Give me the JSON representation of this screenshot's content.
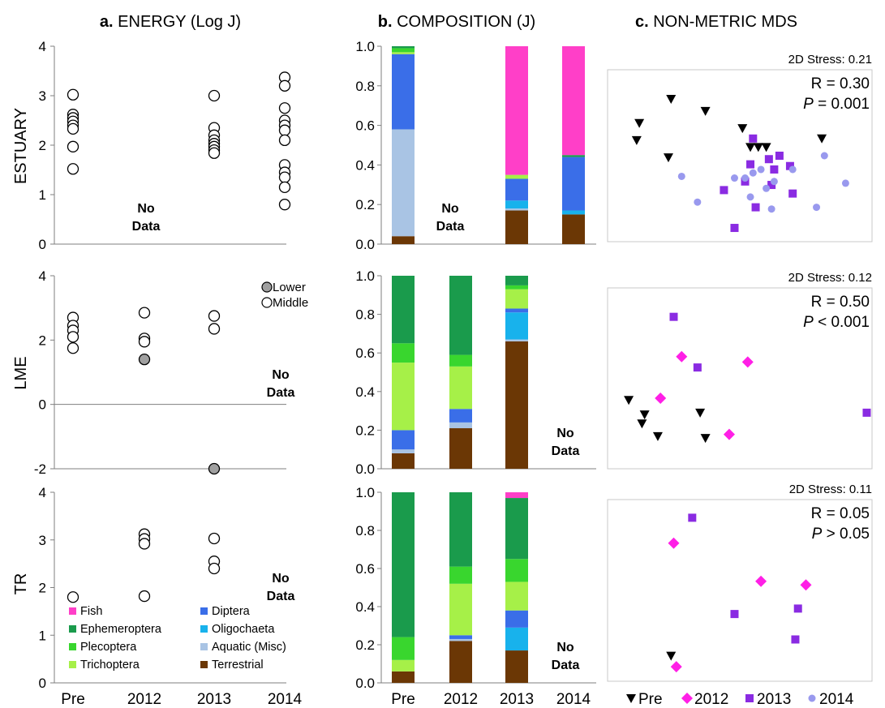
{
  "panel_titles": {
    "a": {
      "letter": "a.",
      "text": " ENERGY (Log J)"
    },
    "b": {
      "letter": "b.",
      "text": " COMPOSITION (J)"
    },
    "c": {
      "letter": "c.",
      "text": " NON-METRIC MDS"
    }
  },
  "row_labels": [
    "ESTUARY",
    "LME",
    "TR"
  ],
  "categories": [
    "Pre",
    "2012",
    "2013",
    "2014"
  ],
  "no_data_label": [
    "No",
    "Data"
  ],
  "colors": {
    "Fish": "#ff3fc8",
    "Ephemeroptera": "#1a9b4c",
    "Plecoptera": "#39d62e",
    "Trichoptera": "#a6f048",
    "Diptera": "#3a6ee8",
    "Oligochaeta": "#18b2ec",
    "Aquatic (Misc)": "#a9c4e4",
    "Terrestrial": "#6b3705",
    "mds_Pre": "#000000",
    "mds_2012": "#ff1fe6",
    "mds_2013": "#8a2be2",
    "mds_2014": "#9999ee",
    "lower_fill": "#a0a0a0"
  },
  "chart_data": [
    {
      "type": "scatter",
      "panel": "a",
      "row": "ESTUARY",
      "ylim": [
        0,
        4
      ],
      "yticks": [
        "0",
        "1",
        "2",
        "3",
        "4"
      ],
      "x": [
        "Pre",
        "2012",
        "2013",
        "2014"
      ],
      "series": [
        {
          "name": "",
          "style": "open",
          "points": [
            [
              "Pre",
              3.02
            ],
            [
              "Pre",
              2.62
            ],
            [
              "Pre",
              2.55
            ],
            [
              "Pre",
              2.48
            ],
            [
              "Pre",
              2.4
            ],
            [
              "Pre",
              2.33
            ],
            [
              "Pre",
              1.97
            ],
            [
              "Pre",
              1.52
            ],
            [
              "2013",
              3.0
            ],
            [
              "2013",
              2.35
            ],
            [
              "2013",
              2.2
            ],
            [
              "2013",
              2.1
            ],
            [
              "2013",
              2.03
            ],
            [
              "2013",
              1.97
            ],
            [
              "2013",
              1.9
            ],
            [
              "2013",
              1.84
            ],
            [
              "2014",
              3.37
            ],
            [
              "2014",
              3.2
            ],
            [
              "2014",
              2.75
            ],
            [
              "2014",
              2.5
            ],
            [
              "2014",
              2.4
            ],
            [
              "2014",
              2.3
            ],
            [
              "2014",
              2.1
            ],
            [
              "2014",
              1.6
            ],
            [
              "2014",
              1.45
            ],
            [
              "2014",
              1.35
            ],
            [
              "2014",
              1.15
            ],
            [
              "2014",
              0.8
            ]
          ]
        }
      ],
      "no_data_at": "2012"
    },
    {
      "type": "scatter",
      "panel": "a",
      "row": "LME",
      "ylim": [
        -2,
        4
      ],
      "yticks": [
        "-2",
        "0",
        "2",
        "4"
      ],
      "x": [
        "Pre",
        "2012",
        "2013",
        "2014"
      ],
      "zero_line": true,
      "legend": [
        "Lower",
        "Middle"
      ],
      "series": [
        {
          "name": "Lower",
          "style": "filled",
          "points": [
            [
              "2012",
              1.4
            ],
            [
              "2013",
              -2.0
            ]
          ]
        },
        {
          "name": "Middle",
          "style": "open",
          "points": [
            [
              "Pre",
              2.7
            ],
            [
              "Pre",
              2.45
            ],
            [
              "Pre",
              2.3
            ],
            [
              "Pre",
              2.1
            ],
            [
              "Pre",
              1.75
            ],
            [
              "2012",
              2.85
            ],
            [
              "2012",
              2.05
            ],
            [
              "2012",
              1.95
            ],
            [
              "2013",
              2.75
            ],
            [
              "2013",
              2.35
            ]
          ]
        }
      ],
      "no_data_at": "2014"
    },
    {
      "type": "scatter",
      "panel": "a",
      "row": "TR",
      "ylim": [
        0,
        4
      ],
      "yticks": [
        "0",
        "1",
        "2",
        "3",
        "4"
      ],
      "x": [
        "Pre",
        "2012",
        "2013",
        "2014"
      ],
      "series": [
        {
          "name": "",
          "style": "open",
          "points": [
            [
              "Pre",
              1.8
            ],
            [
              "2012",
              3.12
            ],
            [
              "2012",
              3.02
            ],
            [
              "2012",
              2.92
            ],
            [
              "2012",
              1.82
            ],
            [
              "2013",
              3.03
            ],
            [
              "2013",
              2.55
            ],
            [
              "2013",
              2.4
            ]
          ]
        }
      ],
      "no_data_at": "2014"
    },
    {
      "type": "bar",
      "stacked": true,
      "panel": "b",
      "row": "ESTUARY",
      "ylim": [
        0,
        1
      ],
      "yticks": [
        "0.0",
        "0.2",
        "0.4",
        "0.6",
        "0.8",
        "1.0"
      ],
      "categories": [
        "Pre",
        "2012",
        "2013",
        "2014"
      ],
      "no_data_at": "2012",
      "series": [
        {
          "name": "Terrestrial",
          "values": [
            0.04,
            null,
            0.17,
            0.15
          ]
        },
        {
          "name": "Aquatic (Misc)",
          "values": [
            0.54,
            null,
            0.01,
            0.0
          ]
        },
        {
          "name": "Oligochaeta",
          "values": [
            0.0,
            null,
            0.04,
            0.02
          ]
        },
        {
          "name": "Diptera",
          "values": [
            0.38,
            null,
            0.11,
            0.27
          ]
        },
        {
          "name": "Trichoptera",
          "values": [
            0.01,
            null,
            0.02,
            0.0
          ]
        },
        {
          "name": "Plecoptera",
          "values": [
            0.02,
            null,
            0.0,
            0.0
          ]
        },
        {
          "name": "Ephemeroptera",
          "values": [
            0.01,
            null,
            0.0,
            0.01
          ]
        },
        {
          "name": "Fish",
          "values": [
            0.0,
            null,
            0.65,
            0.55
          ]
        }
      ]
    },
    {
      "type": "bar",
      "stacked": true,
      "panel": "b",
      "row": "LME",
      "ylim": [
        0,
        1
      ],
      "yticks": [
        "0.0",
        "0.2",
        "0.4",
        "0.6",
        "0.8",
        "1.0"
      ],
      "categories": [
        "Pre",
        "2012",
        "2013",
        "2014"
      ],
      "no_data_at": "2014",
      "series": [
        {
          "name": "Terrestrial",
          "values": [
            0.08,
            0.21,
            0.66,
            null
          ]
        },
        {
          "name": "Aquatic (Misc)",
          "values": [
            0.02,
            0.03,
            0.01,
            null
          ]
        },
        {
          "name": "Oligochaeta",
          "values": [
            0.0,
            0.0,
            0.14,
            null
          ]
        },
        {
          "name": "Diptera",
          "values": [
            0.1,
            0.07,
            0.02,
            null
          ]
        },
        {
          "name": "Trichoptera",
          "values": [
            0.35,
            0.22,
            0.1,
            null
          ]
        },
        {
          "name": "Plecoptera",
          "values": [
            0.1,
            0.06,
            0.02,
            null
          ]
        },
        {
          "name": "Ephemeroptera",
          "values": [
            0.35,
            0.41,
            0.05,
            null
          ]
        },
        {
          "name": "Fish",
          "values": [
            0.0,
            0.0,
            0.0,
            null
          ]
        }
      ]
    },
    {
      "type": "bar",
      "stacked": true,
      "panel": "b",
      "row": "TR",
      "ylim": [
        0,
        1
      ],
      "yticks": [
        "0.0",
        "0.2",
        "0.4",
        "0.6",
        "0.8",
        "1.0"
      ],
      "categories": [
        "Pre",
        "2012",
        "2013",
        "2014"
      ],
      "xlabels": [
        "Pre",
        "2012",
        "2013",
        "2014"
      ],
      "no_data_at": "2014",
      "series": [
        {
          "name": "Terrestrial",
          "values": [
            0.06,
            0.22,
            0.17,
            null
          ]
        },
        {
          "name": "Aquatic (Misc)",
          "values": [
            0.0,
            0.01,
            0.0,
            null
          ]
        },
        {
          "name": "Oligochaeta",
          "values": [
            0.0,
            0.0,
            0.12,
            null
          ]
        },
        {
          "name": "Diptera",
          "values": [
            0.0,
            0.02,
            0.09,
            null
          ]
        },
        {
          "name": "Trichoptera",
          "values": [
            0.06,
            0.27,
            0.15,
            null
          ]
        },
        {
          "name": "Plecoptera",
          "values": [
            0.12,
            0.09,
            0.12,
            null
          ]
        },
        {
          "name": "Ephemeroptera",
          "values": [
            0.76,
            0.39,
            0.32,
            null
          ]
        },
        {
          "name": "Fish",
          "values": [
            0.0,
            0.0,
            0.03,
            null
          ]
        }
      ]
    },
    {
      "type": "scatter",
      "panel": "c",
      "row": "ESTUARY",
      "stress": "2D Stress: 0.21",
      "stat_r": "R = 0.30",
      "stat_p_var": "P",
      "stat_p_rest": " = 0.001",
      "xlim": [
        0,
        1
      ],
      "ylim": [
        0,
        1
      ],
      "series": [
        {
          "name": "Pre",
          "marker": "tri-down",
          "points": [
            [
              0.24,
              0.83
            ],
            [
              0.37,
              0.76
            ],
            [
              0.12,
              0.69
            ],
            [
              0.11,
              0.59
            ],
            [
              0.51,
              0.66
            ],
            [
              0.23,
              0.49
            ],
            [
              0.81,
              0.6
            ],
            [
              0.54,
              0.55
            ],
            [
              0.57,
              0.55
            ],
            [
              0.6,
              0.55
            ]
          ]
        },
        {
          "name": "2012",
          "marker": "diamond",
          "points": []
        },
        {
          "name": "2013",
          "marker": "square",
          "points": [
            [
              0.48,
              0.08
            ],
            [
              0.56,
              0.2
            ],
            [
              0.63,
              0.42
            ],
            [
              0.62,
              0.33
            ],
            [
              0.55,
              0.6
            ],
            [
              0.61,
              0.48
            ],
            [
              0.65,
              0.5
            ],
            [
              0.69,
              0.44
            ],
            [
              0.7,
              0.28
            ],
            [
              0.54,
              0.45
            ],
            [
              0.52,
              0.35
            ],
            [
              0.44,
              0.3
            ]
          ]
        },
        {
          "name": "2014",
          "marker": "circle",
          "points": [
            [
              0.82,
              0.5
            ],
            [
              0.7,
              0.42
            ],
            [
              0.63,
              0.35
            ],
            [
              0.6,
              0.31
            ],
            [
              0.58,
              0.42
            ],
            [
              0.55,
              0.4
            ],
            [
              0.48,
              0.37
            ],
            [
              0.52,
              0.37
            ],
            [
              0.28,
              0.38
            ],
            [
              0.34,
              0.23
            ],
            [
              0.54,
              0.26
            ],
            [
              0.62,
              0.19
            ],
            [
              0.79,
              0.2
            ],
            [
              0.9,
              0.34
            ]
          ]
        }
      ]
    },
    {
      "type": "scatter",
      "panel": "c",
      "row": "LME",
      "stress": "2D Stress: 0.12",
      "stat_r": "R = 0.50",
      "stat_p_var": "P",
      "stat_p_rest": " < 0.001",
      "xlim": [
        0,
        1
      ],
      "ylim": [
        0,
        1
      ],
      "series": [
        {
          "name": "Pre",
          "marker": "tri-down",
          "points": [
            [
              0.08,
              0.38
            ],
            [
              0.14,
              0.3
            ],
            [
              0.13,
              0.25
            ],
            [
              0.19,
              0.18
            ],
            [
              0.35,
              0.31
            ],
            [
              0.37,
              0.17
            ]
          ]
        },
        {
          "name": "2012",
          "marker": "diamond",
          "points": [
            [
              0.2,
              0.39
            ],
            [
              0.28,
              0.62
            ],
            [
              0.53,
              0.59
            ],
            [
              0.46,
              0.19
            ]
          ]
        },
        {
          "name": "2013",
          "marker": "square",
          "points": [
            [
              0.25,
              0.84
            ],
            [
              0.34,
              0.56
            ],
            [
              0.98,
              0.31
            ]
          ]
        },
        {
          "name": "2014",
          "marker": "circle",
          "points": []
        }
      ]
    },
    {
      "type": "scatter",
      "panel": "c",
      "row": "TR",
      "stress": "2D Stress: 0.11",
      "stat_r": "R = 0.05",
      "stat_p_var": "P",
      "stat_p_rest": " > 0.05",
      "xlim": [
        0,
        1
      ],
      "ylim": [
        0,
        1
      ],
      "legend": [
        "Pre",
        "2012",
        "2013",
        "2014"
      ],
      "series": [
        {
          "name": "Pre",
          "marker": "tri-down",
          "points": [
            [
              0.24,
              0.14
            ]
          ]
        },
        {
          "name": "2012",
          "marker": "diamond",
          "points": [
            [
              0.25,
              0.76
            ],
            [
              0.26,
              0.08
            ],
            [
              0.58,
              0.55
            ],
            [
              0.75,
              0.53
            ]
          ]
        },
        {
          "name": "2013",
          "marker": "square",
          "points": [
            [
              0.32,
              0.9
            ],
            [
              0.48,
              0.37
            ],
            [
              0.72,
              0.4
            ],
            [
              0.71,
              0.23
            ]
          ]
        },
        {
          "name": "2014",
          "marker": "circle",
          "points": []
        }
      ]
    }
  ],
  "composition_legend": [
    {
      "name": "Fish",
      "col": 0
    },
    {
      "name": "Diptera",
      "col": 1
    },
    {
      "name": "Ephemeroptera",
      "col": 0
    },
    {
      "name": "Oligochaeta",
      "col": 1
    },
    {
      "name": "Plecoptera",
      "col": 0
    },
    {
      "name": "Aquatic (Misc)",
      "col": 1
    },
    {
      "name": "Trichoptera",
      "col": 0
    },
    {
      "name": "Terrestrial",
      "col": 1
    }
  ]
}
